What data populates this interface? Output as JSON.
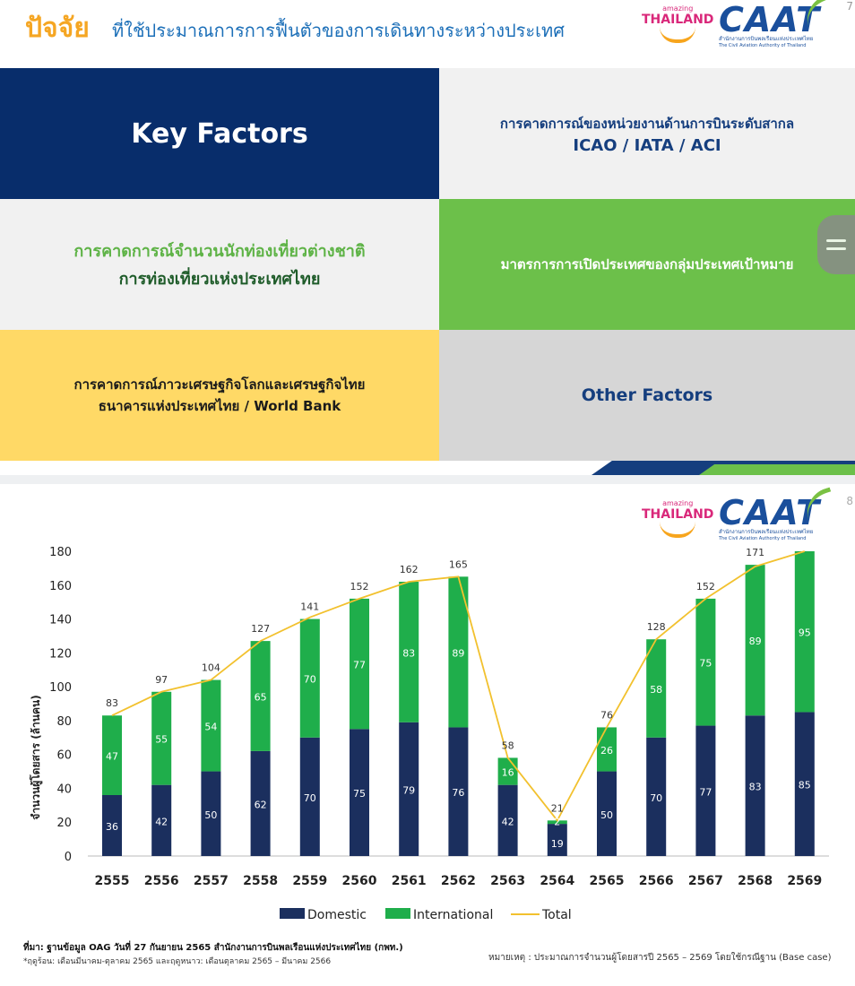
{
  "slide1": {
    "title_accent": "ปัจจัย",
    "title_rest": "ที่ใช้ประมาณการการฟื้นตัวของการเดินทางระหว่างประเทศ",
    "page_number": "7",
    "key_factors": "Key Factors",
    "icao_line1": "การคาดการณ์ของหน่วยงานด้านการบินระดับสากล",
    "icao_line2": "ICAO / IATA / ACI",
    "tourism_line1": "การคาดการณ์จำนวนนักท่องเที่ยวต่างชาติ",
    "tourism_line2": "การท่องเที่ยวแห่งประเทศไทย",
    "opening": "มาตรการการเปิดประเทศของกลุ่มประเทศเป้าหมาย",
    "economy_line1": "การคาดการณ์ภาวะเศรษฐกิจโลกและเศรษฐกิจไทย",
    "economy_line2": "ธนาคารแห่งประเทศไทย / World Bank",
    "other": "Other Factors"
  },
  "logos": {
    "th_small": "amazing",
    "th_big": "THAILAND",
    "caat": "CAAT",
    "caat_th": "สำนักงานการบินพลเรือนแห่งประเทศไทย",
    "caat_en": "The Civil Aviation Authority of Thailand"
  },
  "slide2": {
    "page_number": "8",
    "source": "ที่มา: ฐานข้อมูล OAG วันที่ 27 กันยายน 2565 สำนักงานการบินพลเรือนแห่งประเทศไทย (กพท.)",
    "season_note": "*ฤดูร้อน: เดือนมีนาคม-ตุลาคม 2565 และฤดูหนาว: เดือนตุลาคม 2565 – มีนาคม 2566",
    "remark": "หมายเหตุ : ประมาณการจำนวนผู้โดยสารปี 2565 – 2569 โดยใช้กรณีฐาน (Base case)"
  },
  "colors": {
    "domestic": "#1b2f5e",
    "international": "#1fae4b",
    "total": "#f2c12e",
    "navy": "#082d6b",
    "green": "#6cc04a",
    "yellow": "#ffd966"
  },
  "chart_data": {
    "type": "bar",
    "stacked": true,
    "categories": [
      "2555",
      "2556",
      "2557",
      "2558",
      "2559",
      "2560",
      "2561",
      "2562",
      "2563",
      "2564",
      "2565",
      "2566",
      "2567",
      "2568",
      "2569"
    ],
    "series": [
      {
        "name": "Domestic",
        "values": [
          36,
          42,
          50,
          62,
          70,
          75,
          79,
          76,
          42,
          19,
          50,
          70,
          77,
          83,
          85
        ]
      },
      {
        "name": "International",
        "values": [
          47,
          55,
          54,
          65,
          70,
          77,
          83,
          89,
          16,
          2,
          26,
          58,
          75,
          89,
          95
        ]
      },
      {
        "name": "Total",
        "type": "line",
        "values": [
          83,
          97,
          104,
          127,
          141,
          152,
          162,
          165,
          58,
          21,
          76,
          128,
          152,
          171,
          180
        ]
      }
    ],
    "total_labels": [
      "83",
      "97",
      "104",
      "127",
      "141",
      "152",
      "162",
      "165",
      "58",
      "21",
      "76",
      "128",
      "152",
      "171",
      ""
    ],
    "ylabel": "จำนวนผู้โดยสาร (ล้านคน)",
    "xlabel": "",
    "ylim": [
      0,
      180
    ],
    "yticks": [
      0,
      20,
      40,
      60,
      80,
      100,
      120,
      140,
      160,
      180
    ],
    "legend": [
      "Domestic",
      "International",
      "Total"
    ],
    "legend_position": "bottom",
    "grid": false
  }
}
